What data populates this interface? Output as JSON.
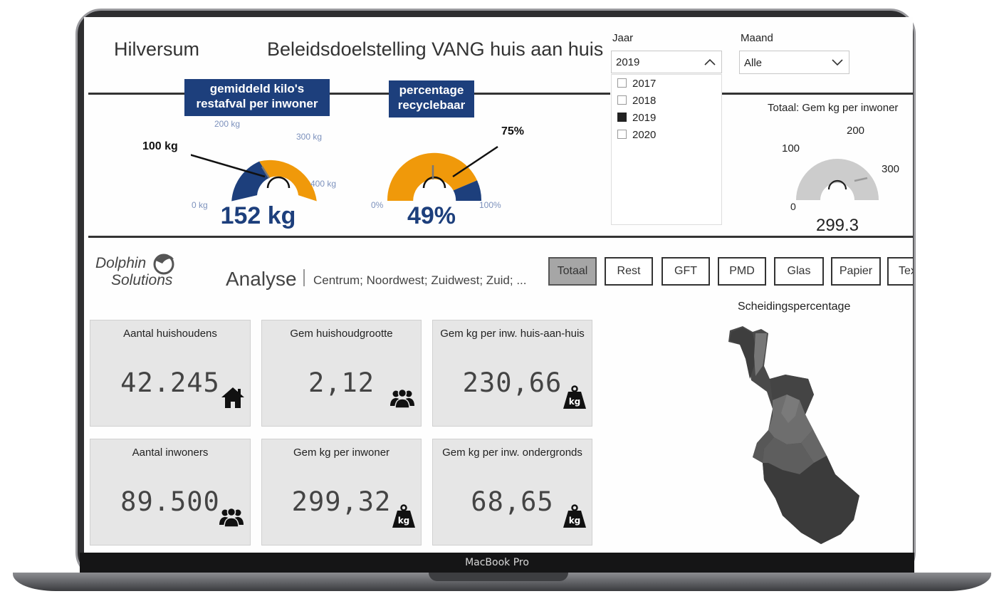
{
  "header": {
    "city": "Hilversum",
    "title": "Beleidsdoelstelling VANG huis aan huis"
  },
  "filters": {
    "jaar": {
      "label": "Jaar",
      "selected": "2019",
      "options": [
        {
          "label": "2017",
          "checked": false
        },
        {
          "label": "2018",
          "checked": false
        },
        {
          "label": "2019",
          "checked": true
        },
        {
          "label": "2020",
          "checked": false
        }
      ]
    },
    "maand": {
      "label": "Maand",
      "selected": "Alle"
    }
  },
  "gauges": {
    "restafval": {
      "label_line1": "gemiddeld kilo's",
      "label_line2": "restafval per inwoner",
      "value": "152 kg",
      "value_num": 152,
      "target": "100 kg",
      "target_num": 100,
      "min": "0 kg",
      "ticks": [
        "200 kg",
        "300 kg",
        "400 kg"
      ],
      "max_num": 400,
      "color_low": "#1d3f7c",
      "color_high": "#f0990a"
    },
    "recycle": {
      "label_line1": "percentage",
      "label_line2": "recyclebaar",
      "value": "49%",
      "value_num": 49,
      "target": "75%",
      "target_num": 75,
      "min": "0%",
      "max": "100%"
    },
    "totaal": {
      "title": "Totaal: Gem kg per inwoner",
      "value": "299.3",
      "value_num": 299.3,
      "ticks": [
        "0",
        "100",
        "200",
        "300"
      ]
    }
  },
  "brand": {
    "line1": "Dolphin",
    "line2": "Solutions"
  },
  "analyse": {
    "title": "Analyse",
    "regions": "Centrum; Noordwest; Zuidwest; Zuid; ..."
  },
  "tabs": [
    {
      "label": "Totaal",
      "active": true
    },
    {
      "label": "Rest",
      "active": false
    },
    {
      "label": "GFT",
      "active": false
    },
    {
      "label": "PMD",
      "active": false
    },
    {
      "label": "Glas",
      "active": false
    },
    {
      "label": "Papier",
      "active": false
    },
    {
      "label": "Tex",
      "active": false
    }
  ],
  "cards": [
    {
      "title": "Aantal huishoudens",
      "value": "42.245",
      "icon": "house-icon"
    },
    {
      "title": "Gem huishoudgrootte",
      "value": "2,12",
      "icon": "people-icon"
    },
    {
      "title": "Gem kg per inw. huis-aan-huis",
      "value": "230,66",
      "icon": "kg-weight-icon"
    },
    {
      "title": "Aantal inwoners",
      "value": "89.500",
      "icon": "people-icon"
    },
    {
      "title": "Gem kg per inwoner",
      "value": "299,32",
      "icon": "kg-weight-icon"
    },
    {
      "title": "Gem kg per inw. ondergronds",
      "value": "68,65",
      "icon": "kg-weight-icon"
    }
  ],
  "map": {
    "title": "Scheidingspercentage"
  },
  "device": {
    "label": "MacBook Pro"
  },
  "icons": {
    "kg": "kg"
  }
}
